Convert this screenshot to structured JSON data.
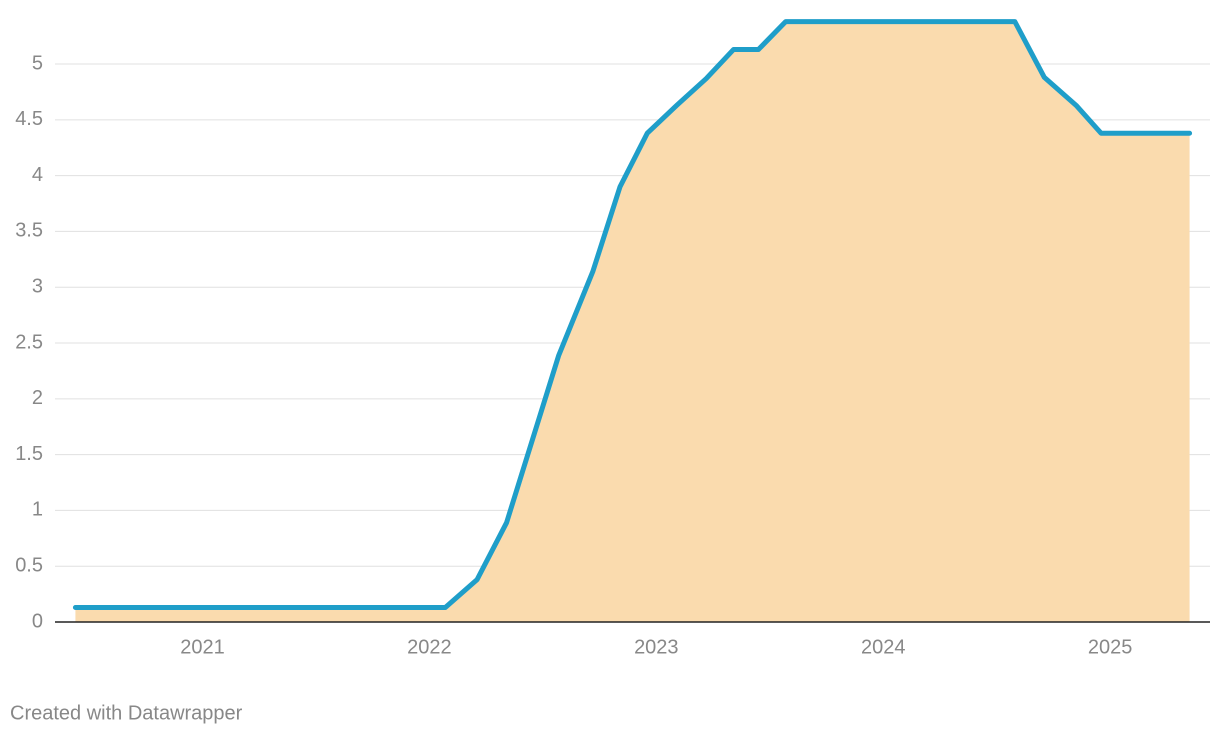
{
  "chart_data": {
    "type": "area",
    "x": [
      2020.44,
      2022.07,
      2022.21,
      2022.34,
      2022.57,
      2022.72,
      2022.84,
      2022.96,
      2023.09,
      2023.22,
      2023.34,
      2023.45,
      2023.57,
      2024.58,
      2024.71,
      2024.85,
      2024.96,
      2025.35
    ],
    "series": [
      {
        "color": "#1f9ec9",
        "fill": "#fadbae",
        "values": [
          0.13,
          0.13,
          0.38,
          0.89,
          2.39,
          3.14,
          3.9,
          4.38,
          4.63,
          4.87,
          5.13,
          5.13,
          5.38,
          5.38,
          4.88,
          4.63,
          4.38,
          4.38
        ]
      }
    ],
    "xlim": [
      2020.35,
      2025.44
    ],
    "xticks": [
      2021,
      2022,
      2023,
      2024,
      2025
    ],
    "ylim": [
      0,
      5.4
    ],
    "yticks": [
      0,
      0.5,
      1,
      1.5,
      2,
      2.5,
      3,
      3.5,
      4,
      4.5,
      5
    ],
    "grid": true,
    "credit": "Created with Datawrapper"
  }
}
